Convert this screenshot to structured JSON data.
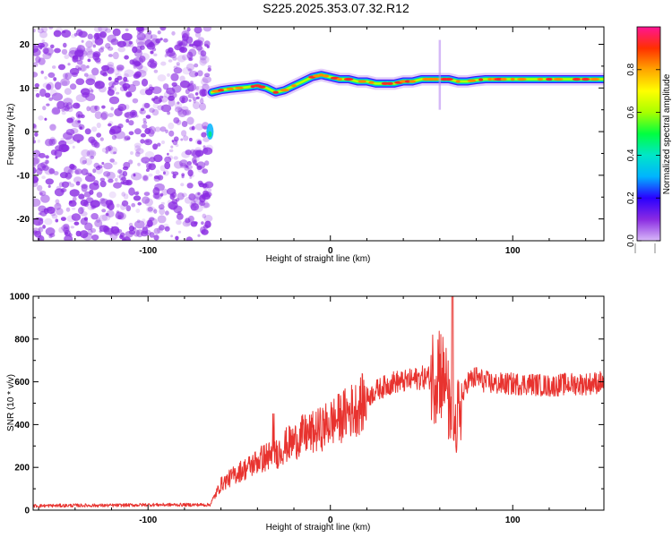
{
  "title": "S225.2025.353.07.32.R12",
  "chart_data": [
    {
      "type": "heatmap",
      "title": "S225.2025.353.07.32.R12",
      "xlabel": "Height of straight line (km)",
      "ylabel": "Frequency (Hz)",
      "xlim": [
        -163,
        150
      ],
      "ylim": [
        -25,
        24
      ],
      "x_ticks": [
        -100,
        0,
        100
      ],
      "y_ticks": [
        -20,
        -10,
        0,
        10,
        20
      ],
      "colorbar": {
        "label": "Normalized spectral amplitude",
        "range": [
          0,
          1
        ],
        "ticks": [
          0,
          0.2,
          0.4,
          0.6,
          0.8
        ],
        "tick_labels": [
          "0.0",
          "0.2",
          "0.4",
          "0.6",
          "0.8"
        ],
        "colormap": [
          "#d8b8f8",
          "#8a2be2",
          "#2a00ff",
          "#00b4ff",
          "#00e6c8",
          "#00ff40",
          "#a8ff00",
          "#ffff00",
          "#ffa500",
          "#ff3000",
          "#ff1493"
        ]
      },
      "noise_region_x": [
        -163,
        -66
      ],
      "noise_color": "#8a2be2",
      "ridge": {
        "x": [
          -65,
          -60,
          -55,
          -50,
          -45,
          -40,
          -35,
          -30,
          -25,
          -20,
          -15,
          -10,
          -5,
          0,
          5,
          10,
          15,
          20,
          25,
          30,
          35,
          40,
          45,
          50,
          55,
          60,
          65,
          70,
          75,
          80,
          85,
          90,
          95,
          100,
          110,
          120,
          130,
          140,
          150
        ],
        "y": [
          9,
          9.5,
          9.8,
          10,
          10.2,
          10.5,
          10,
          9,
          9.5,
          10.5,
          11.5,
          12.5,
          13,
          12.5,
          12,
          12,
          11.5,
          11.5,
          11,
          11,
          11,
          11.5,
          11.5,
          12,
          12,
          12,
          12,
          11.5,
          11.5,
          11.8,
          12,
          12,
          12,
          12,
          12,
          12,
          12,
          12,
          12
        ]
      }
    },
    {
      "type": "line",
      "xlabel": "Height of straight line (km)",
      "ylabel": "SNR (10 * v/v)",
      "xlim": [
        -163,
        150
      ],
      "ylim": [
        0,
        1000
      ],
      "x_ticks": [
        -100,
        0,
        100
      ],
      "y_ticks": [
        0,
        200,
        400,
        600,
        800,
        1000
      ],
      "color": "#e8332f",
      "series": [
        {
          "x": [
            -163,
            -140,
            -120,
            -100,
            -80,
            -70,
            -66,
            -60,
            -55,
            -50,
            -45,
            -40,
            -35,
            -30,
            -25,
            -20,
            -15,
            -10,
            -5,
            0,
            5,
            10,
            15,
            20,
            25,
            30,
            35,
            40,
            45,
            50,
            55,
            60,
            62,
            64,
            66,
            68,
            70,
            75,
            80,
            85,
            90,
            100,
            110,
            120,
            130,
            140,
            150
          ],
          "y": [
            20,
            22,
            22,
            25,
            25,
            25,
            25,
            120,
            150,
            180,
            200,
            230,
            250,
            260,
            300,
            320,
            350,
            360,
            380,
            410,
            430,
            460,
            480,
            520,
            560,
            580,
            600,
            600,
            610,
            620,
            620,
            680,
            600,
            560,
            400,
            320,
            450,
            600,
            620,
            600,
            590,
            590,
            590,
            580,
            590,
            590,
            600
          ]
        }
      ]
    }
  ]
}
